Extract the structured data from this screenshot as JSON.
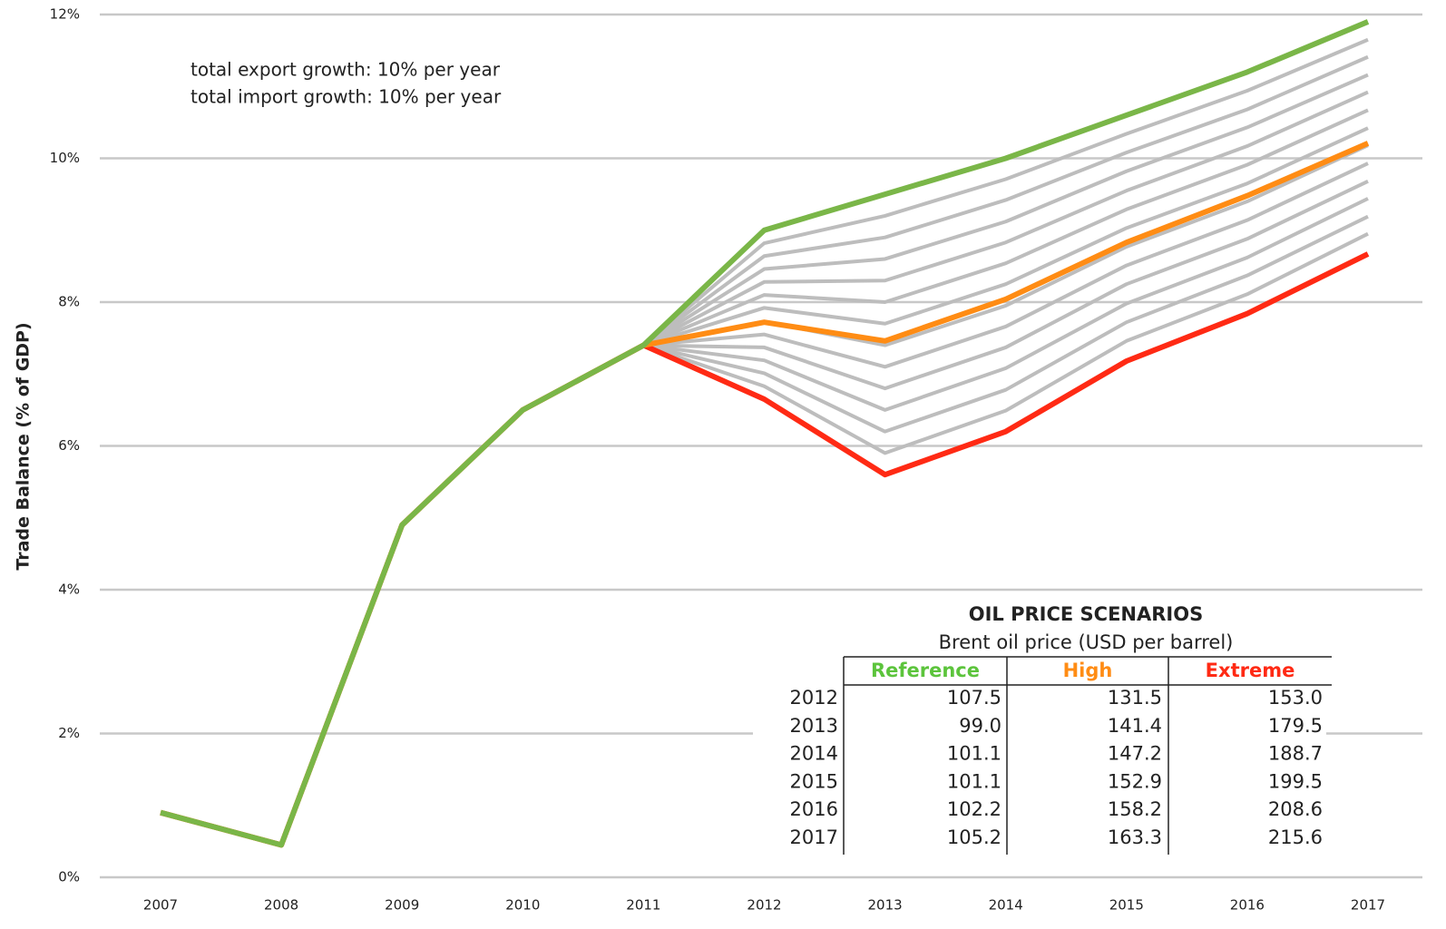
{
  "chart_data": {
    "type": "line",
    "ylabel": "Trade Balance (% of GDP)",
    "annotations": [
      "total export growth: 10% per year",
      "total import growth: 10% per year"
    ],
    "x": [
      2007,
      2008,
      2009,
      2010,
      2011,
      2012,
      2013,
      2014,
      2015,
      2016,
      2017
    ],
    "xlim": [
      2007,
      2017
    ],
    "ylim": [
      0,
      12
    ],
    "yticks": [
      {
        "value": 0,
        "label": "0%"
      },
      {
        "value": 2,
        "label": "2%"
      },
      {
        "value": 4,
        "label": "4%"
      },
      {
        "value": 6,
        "label": "6%"
      },
      {
        "value": 8,
        "label": "8%"
      },
      {
        "value": 10,
        "label": "10%"
      },
      {
        "value": 12,
        "label": "12%"
      }
    ],
    "grid": true,
    "series": [
      {
        "color": "#bdbdbd",
        "values": [
          null,
          null,
          null,
          null,
          7.4,
          6.83,
          5.9,
          6.49,
          7.46,
          8.11,
          8.95
        ]
      },
      {
        "color": "#bdbdbd",
        "values": [
          null,
          null,
          null,
          null,
          7.4,
          7.01,
          6.2,
          6.78,
          7.72,
          8.37,
          9.19
        ]
      },
      {
        "color": "#bdbdbd",
        "values": [
          null,
          null,
          null,
          null,
          7.4,
          7.19,
          6.5,
          7.08,
          7.98,
          8.62,
          9.44
        ]
      },
      {
        "color": "#bdbdbd",
        "values": [
          null,
          null,
          null,
          null,
          7.4,
          7.37,
          6.8,
          7.37,
          8.25,
          8.88,
          9.68
        ]
      },
      {
        "color": "#bdbdbd",
        "values": [
          null,
          null,
          null,
          null,
          7.4,
          7.55,
          7.1,
          7.66,
          8.51,
          9.14,
          9.93
        ]
      },
      {
        "color": "#bdbdbd",
        "values": [
          null,
          null,
          null,
          null,
          7.4,
          7.73,
          7.4,
          7.95,
          8.77,
          9.4,
          10.18
        ]
      },
      {
        "color": "#bdbdbd",
        "values": [
          null,
          null,
          null,
          null,
          7.4,
          7.92,
          7.7,
          8.25,
          9.03,
          9.65,
          10.42
        ]
      },
      {
        "color": "#bdbdbd",
        "values": [
          null,
          null,
          null,
          null,
          7.4,
          8.1,
          8.0,
          8.54,
          9.29,
          9.91,
          10.67
        ]
      },
      {
        "color": "#bdbdbd",
        "values": [
          null,
          null,
          null,
          null,
          7.4,
          8.28,
          8.3,
          8.83,
          9.55,
          10.17,
          10.92
        ]
      },
      {
        "color": "#bdbdbd",
        "values": [
          null,
          null,
          null,
          null,
          7.4,
          8.46,
          8.6,
          9.12,
          9.82,
          10.43,
          11.16
        ]
      },
      {
        "color": "#bdbdbd",
        "values": [
          null,
          null,
          null,
          null,
          7.4,
          8.64,
          8.9,
          9.42,
          10.08,
          10.68,
          11.41
        ]
      },
      {
        "color": "#bdbdbd",
        "values": [
          null,
          null,
          null,
          null,
          7.4,
          8.82,
          9.2,
          9.71,
          10.34,
          10.94,
          11.65
        ]
      },
      {
        "color": "#ff2a14",
        "values": [
          0.9,
          0.45,
          4.9,
          6.5,
          7.4,
          6.65,
          5.6,
          6.2,
          7.18,
          7.84,
          8.67
        ]
      },
      {
        "color": "#ff8c14",
        "values": [
          0.9,
          0.45,
          4.9,
          6.5,
          7.4,
          7.72,
          7.46,
          8.04,
          8.83,
          9.48,
          10.21
        ]
      },
      {
        "color": "#7ab648",
        "values": [
          0.9,
          0.45,
          4.9,
          6.5,
          7.4,
          9.0,
          9.5,
          10.0,
          10.6,
          11.2,
          11.9
        ]
      }
    ]
  },
  "table": {
    "title": "OIL PRICE SCENARIOS",
    "subtitle": "Brent oil price (USD per barrel)",
    "columns": [
      {
        "label": "Reference",
        "color": "#5cc43c"
      },
      {
        "label": "High",
        "color": "#ff8c14"
      },
      {
        "label": "Extreme",
        "color": "#ff2a14"
      }
    ],
    "rows": [
      [
        "2012",
        "107.5",
        "131.5",
        "153.0"
      ],
      [
        "2013",
        "99.0",
        "141.4",
        "179.5"
      ],
      [
        "2014",
        "101.1",
        "147.2",
        "188.7"
      ],
      [
        "2015",
        "101.1",
        "152.9",
        "199.5"
      ],
      [
        "2016",
        "102.2",
        "158.2",
        "208.6"
      ],
      [
        "2017",
        "105.2",
        "163.3",
        "215.6"
      ]
    ]
  }
}
